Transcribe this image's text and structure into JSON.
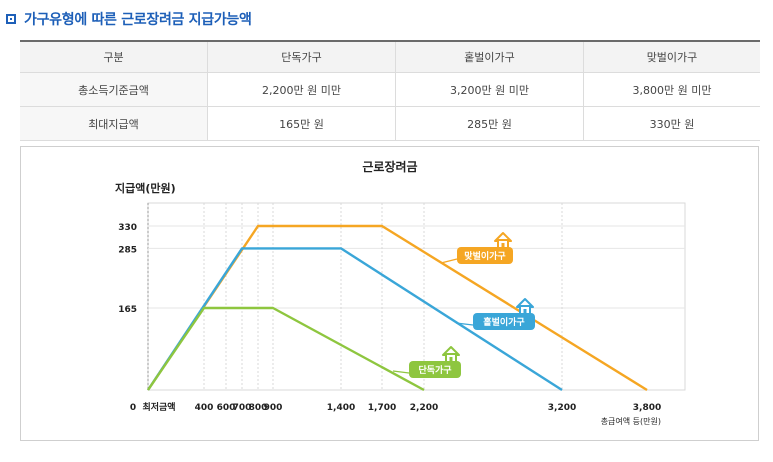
{
  "heading": {
    "title": "가구유형에 따른 근로장려금 지급가능액"
  },
  "table": {
    "headers": [
      "구분",
      "단독가구",
      "홑벌이가구",
      "맞벌이가구"
    ],
    "rows": [
      [
        "총소득기준금액",
        "2,200만 원 미만",
        "3,200만 원 미만",
        "3,800만 원 미만"
      ],
      [
        "최대지급액",
        "165만 원",
        "285만 원",
        "330만 원"
      ]
    ]
  },
  "chart_data": {
    "type": "line",
    "title": "근로장려금",
    "ylabel": "지급액(만원)",
    "xlabel": "총급여액 등(만원)",
    "x_ticks": [
      "0",
      "최저금액",
      "400",
      "600",
      "700",
      "800",
      "900",
      "1,400",
      "1,700",
      "2,200",
      "3,200",
      "3,800"
    ],
    "y_ticks": [
      "165",
      "285",
      "330"
    ],
    "series": [
      {
        "name": "맞벌이가구",
        "color": "#f5a623",
        "points": [
          [
            0,
            0
          ],
          [
            800,
            330
          ],
          [
            1700,
            330
          ],
          [
            3800,
            0
          ]
        ],
        "icon": "house-icon"
      },
      {
        "name": "홑벌이가구",
        "color": "#3aa6d8",
        "points": [
          [
            0,
            0
          ],
          [
            700,
            285
          ],
          [
            1400,
            285
          ],
          [
            3200,
            0
          ]
        ],
        "icon": "house-icon"
      },
      {
        "name": "단독가구",
        "color": "#8ec63f",
        "points": [
          [
            0,
            0
          ],
          [
            400,
            165
          ],
          [
            900,
            165
          ],
          [
            2200,
            0
          ]
        ],
        "icon": "house-icon"
      }
    ]
  }
}
